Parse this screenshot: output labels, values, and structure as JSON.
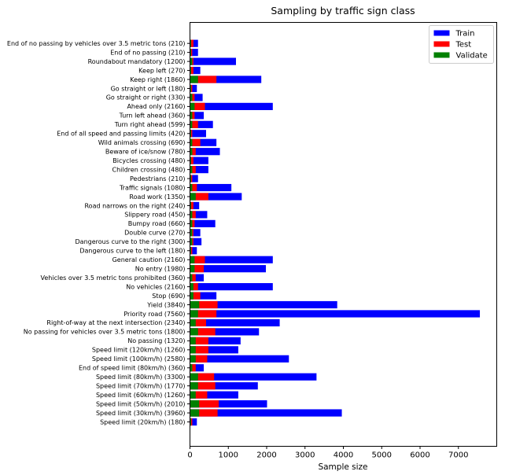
{
  "chart_data": {
    "type": "bar",
    "orientation": "horizontal",
    "stacked": "overlay",
    "title": "Sampling by traffic sign class",
    "xlabel": "Sample size",
    "ylabel": "",
    "xlim": [
      0,
      8000
    ],
    "xticks": [
      0,
      1000,
      2000,
      3000,
      4000,
      5000,
      6000,
      7000
    ],
    "legend_position": "top-right",
    "grid": false,
    "categories": [
      "Speed limit (20km/h) (180)",
      "Speed limit (30km/h) (3960)",
      "Speed limit (50km/h) (2010)",
      "Speed limit (60km/h) (1260)",
      "Speed limit (70km/h) (1770)",
      "Speed limit (80km/h) (3300)",
      "End of speed limit (80km/h) (360)",
      "Speed limit (100km/h) (2580)",
      "Speed limit (120km/h) (1260)",
      "No passing (1320)",
      "No passing for vehicles over 3.5 metric tons (1800)",
      "Right-of-way at the next intersection (2340)",
      "Priority road (7560)",
      "Yield (3840)",
      "Stop (690)",
      "No vehicles (2160)",
      "Vehicles over 3.5 metric tons prohibited (360)",
      "No entry (1980)",
      "General caution (2160)",
      "Dangerous curve to the left (180)",
      "Dangerous curve to the right (300)",
      "Double curve (270)",
      "Bumpy road (660)",
      "Slippery road (450)",
      "Road narrows on the right (240)",
      "Road work (1350)",
      "Traffic signals (1080)",
      "Pedestrians (210)",
      "Children crossing (480)",
      "Bicycles crossing (480)",
      "Beware of ice/snow (780)",
      "Wild animals crossing (690)",
      "End of all speed and passing limits (420)",
      "Turn right ahead (599)",
      "Turn left ahead (360)",
      "Ahead only (2160)",
      "Go straight or right (330)",
      "Go straight or left (180)",
      "Keep right (1860)",
      "Keep left (270)",
      "Roundabout mandatory (1200)",
      "End of no passing (210)",
      "End of no passing by vehicles over 3.5 metric tons (210)"
    ],
    "series": [
      {
        "name": "Train",
        "color": "#0000ff",
        "values": [
          180,
          3960,
          2010,
          1260,
          1770,
          3300,
          360,
          2580,
          1260,
          1320,
          1800,
          2340,
          7560,
          3840,
          690,
          2160,
          360,
          1980,
          2160,
          180,
          300,
          270,
          660,
          450,
          240,
          1350,
          1080,
          210,
          480,
          480,
          780,
          690,
          420,
          599,
          360,
          2160,
          330,
          180,
          1860,
          270,
          1200,
          210,
          210
        ]
      },
      {
        "name": "Test",
        "color": "#ff0000",
        "values": [
          60,
          720,
          750,
          450,
          660,
          630,
          150,
          450,
          480,
          480,
          660,
          420,
          690,
          720,
          270,
          210,
          150,
          360,
          390,
          60,
          90,
          90,
          120,
          150,
          90,
          480,
          180,
          60,
          150,
          90,
          150,
          270,
          60,
          210,
          120,
          390,
          120,
          60,
          690,
          90,
          90,
          60,
          90
        ]
      },
      {
        "name": "Validate",
        "color": "#008000",
        "values": [
          30,
          240,
          240,
          150,
          210,
          210,
          60,
          150,
          150,
          150,
          210,
          150,
          210,
          240,
          90,
          90,
          60,
          120,
          120,
          30,
          60,
          60,
          60,
          60,
          30,
          150,
          60,
          30,
          60,
          30,
          60,
          60,
          30,
          60,
          60,
          120,
          60,
          30,
          210,
          30,
          60,
          30,
          30
        ]
      }
    ]
  }
}
